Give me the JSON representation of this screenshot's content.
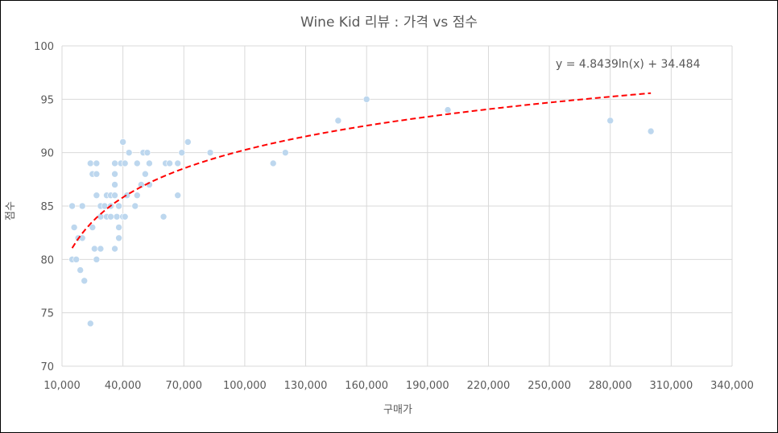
{
  "chart_data": {
    "type": "scatter",
    "title": "Wine Kid 리뷰 : 가격 vs 점수",
    "xlabel": "구매가",
    "ylabel": "점수",
    "xlim": [
      10000,
      340000
    ],
    "ylim": [
      70,
      100
    ],
    "x_ticks": [
      10000,
      40000,
      70000,
      100000,
      130000,
      160000,
      190000,
      220000,
      250000,
      280000,
      310000,
      340000
    ],
    "x_tick_labels": [
      "10,000",
      "40,000",
      "70,000",
      "100,000",
      "130,000",
      "160,000",
      "190,000",
      "220,000",
      "250,000",
      "280,000",
      "310,000",
      "340,000"
    ],
    "y_ticks": [
      70,
      75,
      80,
      85,
      90,
      95,
      100
    ],
    "y_tick_labels": [
      "70",
      "75",
      "80",
      "85",
      "90",
      "95",
      "100"
    ],
    "grid": true,
    "point_color": "#bdd7ee",
    "trend_color": "#ff0000",
    "trendline": {
      "type": "log",
      "a": 4.8439,
      "b": 34.484,
      "x_range": [
        15000,
        300000
      ],
      "equation": "y = 4.8439ln(x) + 34.484"
    },
    "points": [
      [
        15000,
        85
      ],
      [
        15000,
        80
      ],
      [
        16000,
        83
      ],
      [
        17000,
        80
      ],
      [
        18000,
        82
      ],
      [
        19000,
        79
      ],
      [
        20000,
        85
      ],
      [
        20000,
        82
      ],
      [
        21000,
        78
      ],
      [
        24000,
        74
      ],
      [
        24000,
        89
      ],
      [
        25000,
        88
      ],
      [
        25000,
        83
      ],
      [
        26000,
        81
      ],
      [
        27000,
        89
      ],
      [
        27000,
        88
      ],
      [
        27000,
        86
      ],
      [
        27000,
        80
      ],
      [
        29000,
        85
      ],
      [
        29000,
        84
      ],
      [
        29000,
        81
      ],
      [
        31000,
        85
      ],
      [
        32000,
        86
      ],
      [
        32000,
        84
      ],
      [
        34000,
        86
      ],
      [
        34000,
        85
      ],
      [
        34000,
        84
      ],
      [
        36000,
        89
      ],
      [
        36000,
        88
      ],
      [
        36000,
        87
      ],
      [
        36000,
        86
      ],
      [
        36000,
        81
      ],
      [
        37000,
        84
      ],
      [
        38000,
        85
      ],
      [
        38000,
        83
      ],
      [
        38000,
        82
      ],
      [
        39000,
        89
      ],
      [
        40000,
        91
      ],
      [
        40000,
        84
      ],
      [
        41000,
        89
      ],
      [
        41000,
        84
      ],
      [
        42000,
        86
      ],
      [
        43000,
        90
      ],
      [
        46000,
        85
      ],
      [
        47000,
        89
      ],
      [
        47000,
        86
      ],
      [
        49000,
        87
      ],
      [
        50000,
        90
      ],
      [
        51000,
        88
      ],
      [
        52000,
        90
      ],
      [
        53000,
        89
      ],
      [
        53000,
        87
      ],
      [
        60000,
        84
      ],
      [
        61000,
        89
      ],
      [
        63000,
        89
      ],
      [
        67000,
        89
      ],
      [
        67000,
        86
      ],
      [
        69000,
        90
      ],
      [
        72000,
        91
      ],
      [
        83000,
        90
      ],
      [
        114000,
        89
      ],
      [
        120000,
        90
      ],
      [
        146000,
        93
      ],
      [
        160000,
        95
      ],
      [
        200000,
        94
      ],
      [
        280000,
        93
      ],
      [
        300000,
        92
      ]
    ]
  }
}
